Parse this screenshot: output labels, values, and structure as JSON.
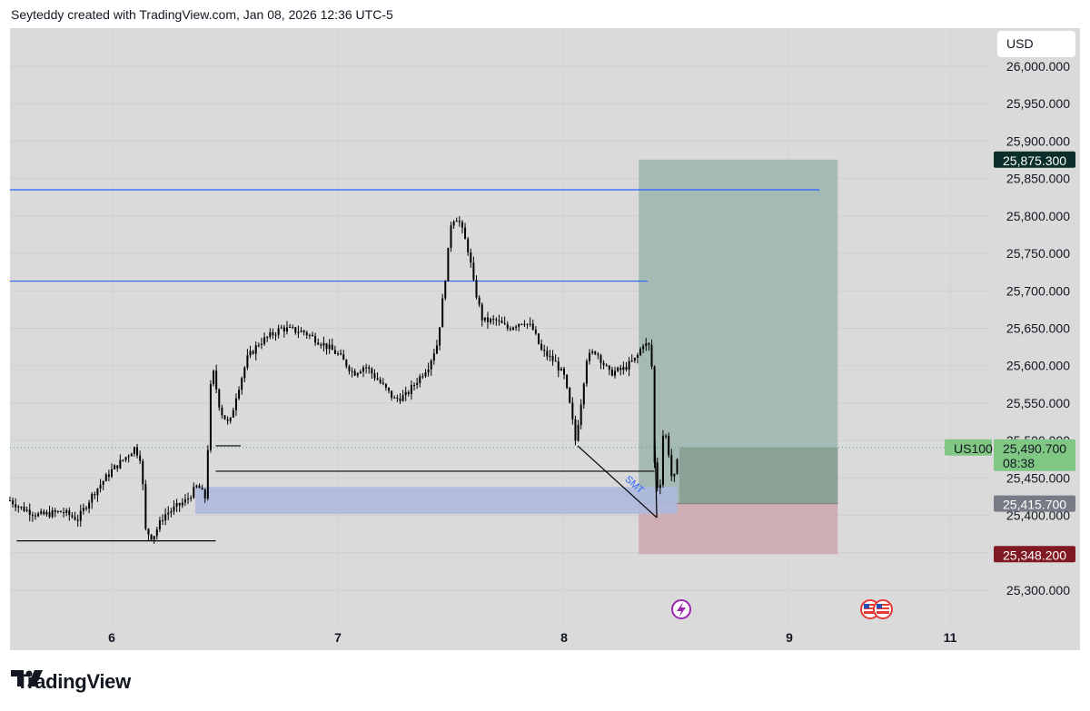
{
  "header": {
    "attribution": "Seyteddy created with TradingView.com, Jan 08, 2026 12:36 UTC-5"
  },
  "footer": {
    "brand": "TradingView"
  },
  "colors": {
    "chart_bg": "#dadada",
    "candle": "#000000",
    "level_line": "#2962ff",
    "profit_zone": "#a5bab5",
    "loss_zone": "#cfaeb3",
    "fvg_zone": "#adb9dc",
    "price_badge": "#81c784",
    "target_badge": "#0a2e29",
    "stop_badge": "#801922",
    "entry_badge": "#787b86"
  },
  "chart_data": {
    "type": "candlestick",
    "symbol": "US100",
    "currency": "USD",
    "x_ticks": [
      "6",
      "7",
      "8",
      "9",
      "11"
    ],
    "y_ticks": [
      "26,000.000",
      "25,950.000",
      "25,900.000",
      "25,850.000",
      "25,800.000",
      "25,750.000",
      "25,700.000",
      "25,650.000",
      "25,600.000",
      "25,550.000",
      "25,500.000",
      "25,450.000",
      "25,400.000",
      "25,350.000",
      "25,300.000"
    ],
    "ylim": [
      25270,
      26040
    ],
    "price_path": [
      [
        5.55,
        25420
      ],
      [
        5.6,
        25410
      ],
      [
        5.68,
        25400
      ],
      [
        5.78,
        25405
      ],
      [
        5.85,
        25395
      ],
      [
        5.92,
        25430
      ],
      [
        6.0,
        25460
      ],
      [
        6.07,
        25480
      ],
      [
        6.1,
        25490
      ],
      [
        6.13,
        25475
      ],
      [
        6.15,
        25380
      ],
      [
        6.18,
        25370
      ],
      [
        6.23,
        25400
      ],
      [
        6.33,
        25420
      ],
      [
        6.38,
        25440
      ],
      [
        6.42,
        25420
      ],
      [
        6.43,
        25560
      ],
      [
        6.45,
        25590
      ],
      [
        6.48,
        25540
      ],
      [
        6.52,
        25520
      ],
      [
        6.55,
        25560
      ],
      [
        6.6,
        25610
      ],
      [
        6.65,
        25630
      ],
      [
        6.75,
        25650
      ],
      [
        6.85,
        25645
      ],
      [
        6.93,
        25630
      ],
      [
        7.0,
        25615
      ],
      [
        7.07,
        25590
      ],
      [
        7.12,
        25600
      ],
      [
        7.18,
        25580
      ],
      [
        7.25,
        25555
      ],
      [
        7.3,
        25560
      ],
      [
        7.35,
        25580
      ],
      [
        7.4,
        25600
      ],
      [
        7.44,
        25630
      ],
      [
        7.46,
        25680
      ],
      [
        7.48,
        25730
      ],
      [
        7.5,
        25790
      ],
      [
        7.52,
        25800
      ],
      [
        7.54,
        25790
      ],
      [
        7.58,
        25750
      ],
      [
        7.6,
        25710
      ],
      [
        7.64,
        25660
      ],
      [
        7.7,
        25660
      ],
      [
        7.75,
        25650
      ],
      [
        7.82,
        25660
      ],
      [
        7.86,
        25650
      ],
      [
        7.9,
        25620
      ],
      [
        7.96,
        25605
      ],
      [
        8.0,
        25585
      ],
      [
        8.03,
        25540
      ],
      [
        8.05,
        25500
      ],
      [
        8.07,
        25540
      ],
      [
        8.1,
        25610
      ],
      [
        8.14,
        25620
      ],
      [
        8.2,
        25590
      ],
      [
        8.26,
        25595
      ],
      [
        8.32,
        25610
      ],
      [
        8.35,
        25630
      ],
      [
        8.38,
        25625
      ],
      [
        8.39,
        25590
      ],
      [
        8.4,
        25470
      ],
      [
        8.42,
        25420
      ],
      [
        8.44,
        25520
      ],
      [
        8.46,
        25490
      ],
      [
        8.48,
        25440
      ],
      [
        8.5,
        25470
      ],
      [
        8.51,
        25470
      ]
    ],
    "levels": [
      {
        "type": "horizontal-line",
        "price": 25835,
        "x_start": 5.55,
        "x_end": 9.13
      },
      {
        "type": "horizontal-line",
        "price": 25713,
        "x_start": 5.55,
        "x_end": 8.37
      }
    ],
    "support_lines": [
      {
        "price": 25366,
        "x_start": 5.58,
        "x_end": 6.46
      },
      {
        "price": 25459,
        "x_start": 6.46,
        "x_end": 8.4
      },
      {
        "price": 25493,
        "x_start": 6.46,
        "x_end": 6.57
      }
    ],
    "fvg_zone": {
      "price_top": 25438,
      "price_bottom": 25402,
      "x_start": 6.37,
      "x_end": 8.5
    },
    "smt_line": {
      "label": "SMT",
      "from": [
        8.06,
        25493
      ],
      "to": [
        8.41,
        25397
      ]
    },
    "position": {
      "type": "long",
      "x_start": 8.33,
      "x_end": 9.21,
      "entry": 25415.7,
      "target": 25875.3,
      "stop": 25348.2,
      "current_price": 25490.7
    },
    "price_labels": {
      "symbol_tag": "US100",
      "current": "25,490.700",
      "countdown": "08:38",
      "target": "25,875.300",
      "entry": "25,415.700",
      "stop": "25,348.200"
    }
  }
}
